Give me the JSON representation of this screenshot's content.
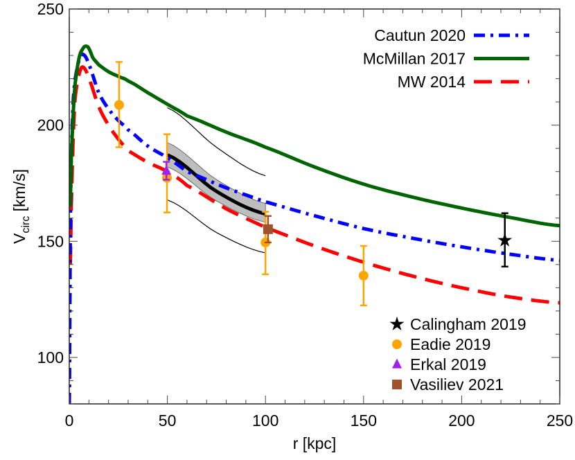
{
  "chart_data": {
    "type": "line",
    "title": "",
    "xlabel": "r [kpc]",
    "ylabel_main": "V",
    "ylabel_sub": "circ",
    "ylabel_unit": " [km/s]",
    "xlim": [
      0,
      250
    ],
    "ylim": [
      80,
      250
    ],
    "xticks": [
      0,
      50,
      100,
      150,
      200,
      250
    ],
    "yticks": [
      100,
      150,
      200,
      250
    ],
    "x_minor_step": 10,
    "y_minor_step": 10,
    "grid": false,
    "legend_lines_position": "top-right",
    "legend_points_position": "bottom-right",
    "series": [
      {
        "name": "Cautun 2020",
        "style": "dash-dot",
        "color": "#0000ff",
        "x": [
          0,
          0.5,
          1,
          2,
          3,
          5,
          7,
          10,
          15,
          20,
          25,
          30,
          40,
          50,
          60,
          80,
          100,
          125,
          150,
          175,
          200,
          225,
          250
        ],
        "y": [
          80,
          150,
          185,
          210,
          220,
          228,
          230.5,
          226,
          214,
          207,
          202,
          198,
          191,
          186,
          180,
          173,
          167,
          161,
          155.5,
          151.3,
          147.6,
          144.4,
          141.8
        ]
      },
      {
        "name": "McMillan 2017",
        "style": "solid",
        "color": "#006400",
        "x": [
          0.5,
          1,
          2,
          3,
          5,
          7,
          8.5,
          10,
          12,
          15,
          20,
          25,
          30,
          40,
          50,
          60,
          80,
          100,
          125,
          150,
          175,
          200,
          225,
          250
        ],
        "y": [
          165,
          185,
          205,
          218,
          229,
          233,
          234,
          233,
          229,
          226,
          223,
          221,
          219,
          214,
          209,
          204,
          197,
          190.5,
          182,
          174.6,
          169,
          164.3,
          160.2,
          156.7
        ]
      },
      {
        "name": "MW 2014",
        "style": "dashed",
        "color": "#ff0000",
        "x": [
          0.5,
          1,
          2,
          3,
          5,
          7,
          10,
          15,
          20,
          25,
          30,
          40,
          50,
          60,
          80,
          100,
          125,
          150,
          175,
          200,
          225,
          250
        ],
        "y": [
          140,
          165,
          195,
          212,
          222,
          225,
          220,
          208,
          200,
          194,
          189,
          184,
          180,
          174,
          164,
          156,
          148,
          141,
          135,
          130,
          126,
          123.5
        ]
      }
    ],
    "band": {
      "color": "#bebebe",
      "x": [
        50,
        75,
        100
      ],
      "center": [
        187.2,
        171.5,
        161.8
      ],
      "upper": [
        192.5,
        176.6,
        166.3
      ],
      "lower": [
        182,
        167.4,
        158.2
      ],
      "outer_upper": [
        207.5,
        190.5,
        178.2
      ],
      "outer_lower": [
        167.8,
        153.8,
        145
      ]
    },
    "points": [
      {
        "name": "Calingham 2019",
        "marker": "star",
        "color": "#000000",
        "data": [
          {
            "x": 222,
            "y": 150.4,
            "lo": 139.1,
            "hi": 162.1
          }
        ]
      },
      {
        "name": "Eadie 2019",
        "marker": "circle",
        "color": "#ffa500",
        "data": [
          {
            "x": 25.4,
            "y": 208.7,
            "lo": 190.5,
            "hi": 227.2
          },
          {
            "x": 49.8,
            "y": 177.3,
            "lo": 162.4,
            "hi": 196.1
          },
          {
            "x": 100,
            "y": 149.5,
            "lo": 135.8,
            "hi": 162.7
          },
          {
            "x": 150,
            "y": 135.2,
            "lo": 122.4,
            "hi": 148
          }
        ]
      },
      {
        "name": "Erkal 2019",
        "marker": "triangle",
        "color": "#a020f0",
        "data": [
          {
            "x": 49.5,
            "y": 180.3,
            "lo": 176.5,
            "hi": 184.2
          }
        ]
      },
      {
        "name": "Vasiliev 2021",
        "marker": "square",
        "color": "#a0522d",
        "data": [
          {
            "x": 101.3,
            "y": 155.2,
            "lo": 149.5,
            "hi": 160.9
          }
        ]
      }
    ]
  }
}
